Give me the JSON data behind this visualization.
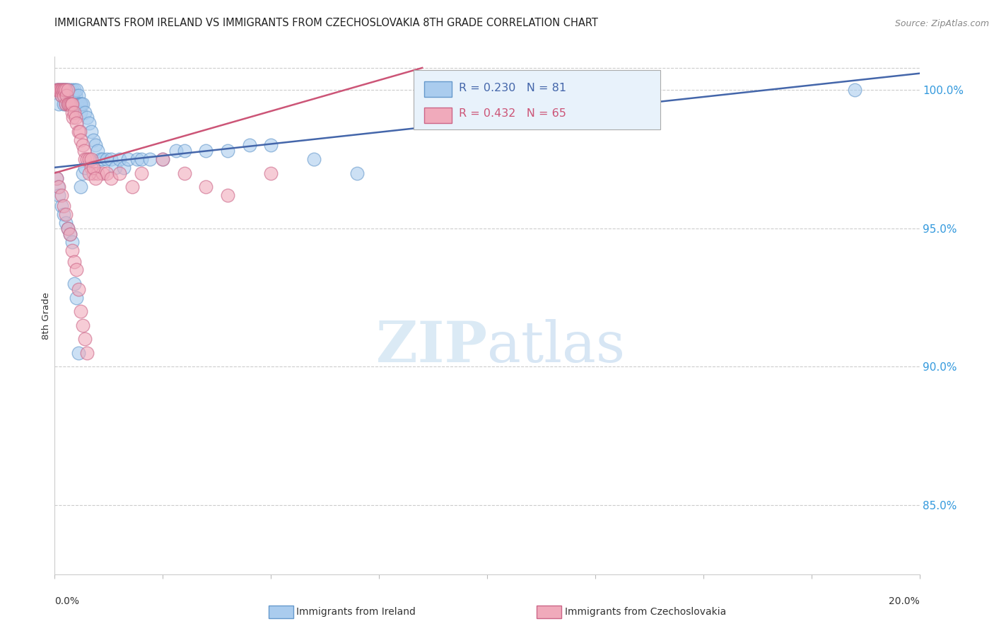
{
  "title": "IMMIGRANTS FROM IRELAND VS IMMIGRANTS FROM CZECHOSLOVAKIA 8TH GRADE CORRELATION CHART",
  "source": "Source: ZipAtlas.com",
  "ylabel": "8th Grade",
  "legend_ireland": "Immigrants from Ireland",
  "legend_czech": "Immigrants from Czechoslovakia",
  "R_ireland": 0.23,
  "N_ireland": 81,
  "R_czech": 0.432,
  "N_czech": 65,
  "color_ireland": "#aaccee",
  "color_czech": "#f0aabb",
  "edge_ireland": "#6699cc",
  "edge_czech": "#cc6688",
  "trendline_ireland": "#4466aa",
  "trendline_czech": "#cc5577",
  "right_yticks": [
    85.0,
    90.0,
    95.0,
    100.0
  ],
  "xmin": 0.0,
  "xmax": 20.0,
  "ymin": 82.5,
  "ymax": 101.2,
  "ireland_x": [
    0.05,
    0.08,
    0.1,
    0.1,
    0.12,
    0.15,
    0.15,
    0.18,
    0.2,
    0.2,
    0.22,
    0.22,
    0.25,
    0.25,
    0.28,
    0.28,
    0.3,
    0.3,
    0.32,
    0.35,
    0.35,
    0.38,
    0.4,
    0.4,
    0.42,
    0.45,
    0.45,
    0.48,
    0.5,
    0.5,
    0.52,
    0.55,
    0.55,
    0.58,
    0.6,
    0.6,
    0.62,
    0.65,
    0.7,
    0.75,
    0.8,
    0.85,
    0.9,
    0.95,
    1.0,
    1.05,
    1.1,
    1.2,
    1.3,
    1.4,
    1.5,
    1.6,
    1.7,
    1.9,
    2.0,
    2.2,
    2.5,
    2.8,
    3.0,
    3.5,
    4.0,
    4.5,
    5.0,
    6.0,
    7.0,
    0.05,
    0.08,
    0.1,
    0.15,
    0.2,
    0.25,
    0.3,
    0.35,
    0.4,
    0.45,
    0.5,
    0.55,
    0.6,
    0.65,
    0.7,
    18.5
  ],
  "ireland_y": [
    100.0,
    100.0,
    100.0,
    99.5,
    100.0,
    100.0,
    99.8,
    100.0,
    100.0,
    99.5,
    100.0,
    99.8,
    100.0,
    99.5,
    100.0,
    99.8,
    100.0,
    99.5,
    99.8,
    100.0,
    99.5,
    99.8,
    100.0,
    99.5,
    99.8,
    100.0,
    99.5,
    99.8,
    100.0,
    99.5,
    99.5,
    99.8,
    99.5,
    99.5,
    99.5,
    99.2,
    99.5,
    99.5,
    99.2,
    99.0,
    98.8,
    98.5,
    98.2,
    98.0,
    97.8,
    97.5,
    97.5,
    97.5,
    97.5,
    97.2,
    97.5,
    97.2,
    97.5,
    97.5,
    97.5,
    97.5,
    97.5,
    97.8,
    97.8,
    97.8,
    97.8,
    98.0,
    98.0,
    97.5,
    97.0,
    96.8,
    96.5,
    96.2,
    95.8,
    95.5,
    95.2,
    95.0,
    94.8,
    94.5,
    93.0,
    92.5,
    90.5,
    96.5,
    97.0,
    97.2,
    100.0
  ],
  "czech_x": [
    0.05,
    0.08,
    0.1,
    0.12,
    0.15,
    0.15,
    0.18,
    0.2,
    0.2,
    0.22,
    0.25,
    0.25,
    0.28,
    0.3,
    0.3,
    0.32,
    0.35,
    0.38,
    0.4,
    0.4,
    0.42,
    0.45,
    0.48,
    0.5,
    0.55,
    0.58,
    0.6,
    0.65,
    0.68,
    0.7,
    0.75,
    0.8,
    0.85,
    0.9,
    1.0,
    1.1,
    1.2,
    1.3,
    1.5,
    1.8,
    2.0,
    2.5,
    3.0,
    3.5,
    4.0,
    5.0,
    0.05,
    0.1,
    0.15,
    0.2,
    0.25,
    0.3,
    0.35,
    0.4,
    0.45,
    0.5,
    0.55,
    0.6,
    0.65,
    0.7,
    0.75,
    0.8,
    0.85,
    0.9,
    0.95
  ],
  "czech_y": [
    100.0,
    100.0,
    100.0,
    100.0,
    100.0,
    99.8,
    100.0,
    100.0,
    99.8,
    100.0,
    100.0,
    99.5,
    99.8,
    100.0,
    99.5,
    99.5,
    99.5,
    99.5,
    99.2,
    99.5,
    99.0,
    99.2,
    99.0,
    98.8,
    98.5,
    98.5,
    98.2,
    98.0,
    97.8,
    97.5,
    97.5,
    97.5,
    97.2,
    97.0,
    97.0,
    97.0,
    97.0,
    96.8,
    97.0,
    96.5,
    97.0,
    97.5,
    97.0,
    96.5,
    96.2,
    97.0,
    96.8,
    96.5,
    96.2,
    95.8,
    95.5,
    95.0,
    94.8,
    94.2,
    93.8,
    93.5,
    92.8,
    92.0,
    91.5,
    91.0,
    90.5,
    97.0,
    97.5,
    97.2,
    96.8
  ]
}
